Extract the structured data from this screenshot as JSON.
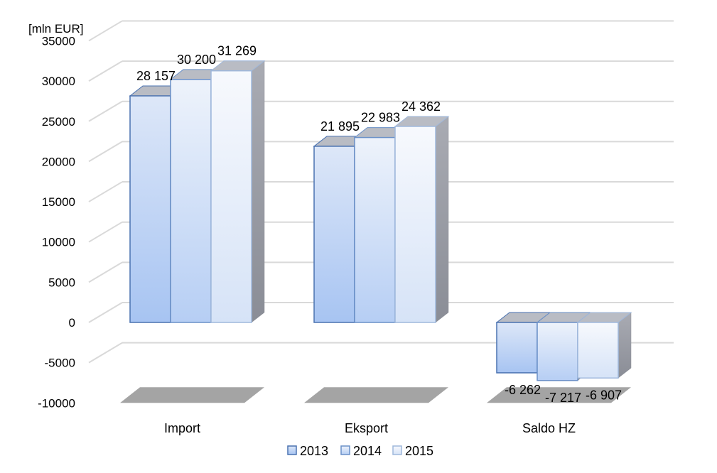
{
  "chart_data": {
    "type": "bar",
    "ylabel": "[mln EUR]",
    "categories": [
      "Import",
      "Eksport",
      "Saldo HZ"
    ],
    "series": [
      {
        "name": "2013",
        "values": [
          28157,
          21895,
          -6262
        ],
        "labels": [
          "28 157",
          "21 895",
          "-6 262"
        ]
      },
      {
        "name": "2014",
        "values": [
          30200,
          22983,
          -7217
        ],
        "labels": [
          "30 200",
          "22 983",
          "-7 217"
        ]
      },
      {
        "name": "2015",
        "values": [
          31269,
          24362,
          -6907
        ],
        "labels": [
          "31 269",
          "24 362",
          "-6 907"
        ]
      }
    ],
    "ylim": [
      -10000,
      35000
    ],
    "yticks": [
      "35000",
      "30000",
      "25000",
      "20000",
      "15000",
      "10000",
      "5000",
      "0",
      "-5000",
      "-10000"
    ],
    "ytick_values": [
      35000,
      30000,
      25000,
      20000,
      15000,
      10000,
      5000,
      0,
      -5000,
      -10000
    ],
    "grid": true,
    "three_d": true,
    "legend_position": "bottom",
    "colors": {
      "2013": {
        "top": "#dde7f8",
        "bottom": "#a7c4f2",
        "edge": "#4a72b0"
      },
      "2014": {
        "top": "#eef3fb",
        "bottom": "#b6cef4",
        "edge": "#6a90c8"
      },
      "2015": {
        "top": "#f7f9fd",
        "bottom": "#d6e3f7",
        "edge": "#9fb8dc"
      },
      "side_light": "#a9abb3",
      "side_dark": "#8a8d96",
      "grid": "#d9d9d9",
      "floor_shadow": "#9a9a9a"
    }
  }
}
